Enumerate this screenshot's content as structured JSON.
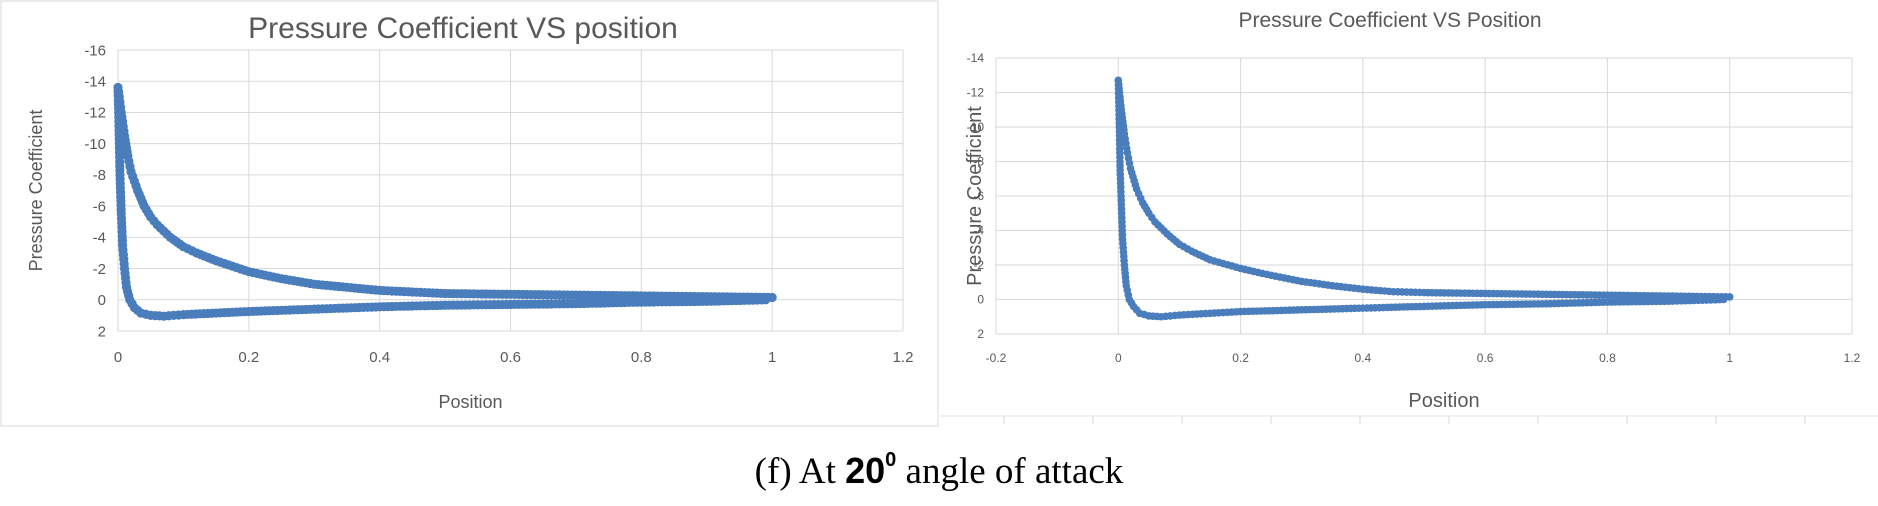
{
  "chart_data": [
    {
      "type": "scatter",
      "title": "Pressure Coefficient VS position",
      "xlabel": "Position",
      "ylabel": "Pressure Coefficient",
      "xlim": [
        0,
        1.2
      ],
      "ylim": [
        -16,
        2
      ],
      "y_inverted": true,
      "grid": true,
      "x_ticks": [
        "0",
        "0.2",
        "0.4",
        "0.6",
        "0.8",
        "1",
        "1.2"
      ],
      "y_ticks": [
        "-16",
        "-14",
        "-12",
        "-10",
        "-8",
        "-6",
        "-4",
        "-2",
        "0",
        "2"
      ],
      "marker_color": "#4a7dbb",
      "series": [
        {
          "points": [
            [
              0.0,
              -13.6
            ],
            [
              0.002,
              -13.0
            ],
            [
              0.005,
              -12.0
            ],
            [
              0.01,
              -10.5
            ],
            [
              0.015,
              -9.2
            ],
            [
              0.02,
              -8.2
            ],
            [
              0.03,
              -7.0
            ],
            [
              0.04,
              -6.0
            ],
            [
              0.05,
              -5.3
            ],
            [
              0.06,
              -4.8
            ],
            [
              0.08,
              -4.0
            ],
            [
              0.1,
              -3.4
            ],
            [
              0.12,
              -3.0
            ],
            [
              0.15,
              -2.5
            ],
            [
              0.2,
              -1.8
            ],
            [
              0.25,
              -1.35
            ],
            [
              0.3,
              -1.0
            ],
            [
              0.35,
              -0.8
            ],
            [
              0.4,
              -0.6
            ],
            [
              0.45,
              -0.5
            ],
            [
              0.5,
              -0.4
            ],
            [
              0.6,
              -0.35
            ],
            [
              0.7,
              -0.3
            ],
            [
              0.8,
              -0.25
            ],
            [
              0.9,
              -0.2
            ],
            [
              1.0,
              -0.15
            ],
            [
              0.99,
              0.0
            ],
            [
              0.9,
              0.1
            ],
            [
              0.8,
              0.15
            ],
            [
              0.7,
              0.25
            ],
            [
              0.6,
              0.3
            ],
            [
              0.5,
              0.35
            ],
            [
              0.4,
              0.45
            ],
            [
              0.3,
              0.6
            ],
            [
              0.2,
              0.75
            ],
            [
              0.15,
              0.85
            ],
            [
              0.1,
              0.95
            ],
            [
              0.07,
              1.05
            ],
            [
              0.05,
              1.0
            ],
            [
              0.035,
              0.85
            ],
            [
              0.025,
              0.5
            ],
            [
              0.018,
              0.0
            ],
            [
              0.013,
              -0.8
            ],
            [
              0.01,
              -2.0
            ],
            [
              0.007,
              -3.5
            ],
            [
              0.005,
              -5.5
            ],
            [
              0.003,
              -8.0
            ],
            [
              0.002,
              -10.0
            ],
            [
              0.001,
              -12.0
            ],
            [
              0.0,
              -13.6
            ]
          ]
        }
      ]
    },
    {
      "type": "scatter",
      "title": "Pressure Coefficient  VS Position",
      "xlabel": "Position",
      "ylabel": "Pressure Coefficient",
      "xlim": [
        -0.2,
        1.2
      ],
      "ylim": [
        -14,
        2
      ],
      "y_inverted": true,
      "grid": true,
      "x_ticks": [
        "-0.2",
        "0",
        "0.2",
        "0.4",
        "0.6",
        "0.8",
        "1",
        "1.2"
      ],
      "y_ticks": [
        "-14",
        "-12",
        "-10",
        "-8",
        "-6",
        "-4",
        "-2",
        "0",
        "2"
      ],
      "marker_color": "#4a7dbb",
      "series": [
        {
          "points": [
            [
              0.0,
              -12.7
            ],
            [
              0.002,
              -12.0
            ],
            [
              0.005,
              -11.0
            ],
            [
              0.01,
              -9.6
            ],
            [
              0.015,
              -8.5
            ],
            [
              0.02,
              -7.6
            ],
            [
              0.03,
              -6.4
            ],
            [
              0.04,
              -5.6
            ],
            [
              0.05,
              -5.0
            ],
            [
              0.06,
              -4.5
            ],
            [
              0.08,
              -3.8
            ],
            [
              0.1,
              -3.2
            ],
            [
              0.12,
              -2.8
            ],
            [
              0.15,
              -2.3
            ],
            [
              0.2,
              -1.8
            ],
            [
              0.25,
              -1.4
            ],
            [
              0.3,
              -1.05
            ],
            [
              0.35,
              -0.8
            ],
            [
              0.4,
              -0.6
            ],
            [
              0.45,
              -0.45
            ],
            [
              0.5,
              -0.4
            ],
            [
              0.6,
              -0.35
            ],
            [
              0.7,
              -0.3
            ],
            [
              0.8,
              -0.25
            ],
            [
              0.9,
              -0.2
            ],
            [
              1.0,
              -0.15
            ],
            [
              0.99,
              0.0
            ],
            [
              0.9,
              0.1
            ],
            [
              0.8,
              0.15
            ],
            [
              0.7,
              0.25
            ],
            [
              0.6,
              0.3
            ],
            [
              0.5,
              0.4
            ],
            [
              0.4,
              0.5
            ],
            [
              0.3,
              0.6
            ],
            [
              0.2,
              0.7
            ],
            [
              0.15,
              0.8
            ],
            [
              0.1,
              0.9
            ],
            [
              0.07,
              1.0
            ],
            [
              0.05,
              0.95
            ],
            [
              0.035,
              0.8
            ],
            [
              0.025,
              0.4
            ],
            [
              0.018,
              0.0
            ],
            [
              0.013,
              -0.8
            ],
            [
              0.01,
              -2.0
            ],
            [
              0.007,
              -3.5
            ],
            [
              0.005,
              -5.5
            ],
            [
              0.003,
              -7.5
            ],
            [
              0.002,
              -9.5
            ],
            [
              0.001,
              -11.2
            ],
            [
              0.0,
              -12.7
            ]
          ]
        }
      ]
    }
  ],
  "caption": {
    "prefix": "(f)  At ",
    "angle": "20",
    "degree": "0",
    "suffix": " angle of attack"
  }
}
